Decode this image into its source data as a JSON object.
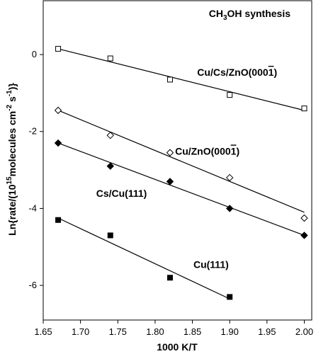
{
  "chart_data": {
    "type": "scatter",
    "title": "CH3OH synthesis",
    "title_parts": {
      "prefix": "CH",
      "sub1": "3",
      "suffix": "OH synthesis"
    },
    "xlabel": "1000 K/T",
    "ylabel": "Ln{rate/(10^15 molecules cm^-2 s^-1)}",
    "ylabel_parts": {
      "a": "Ln{rate/(10",
      "exp1": "15",
      "b": "molecules cm",
      "exp2": "-2",
      "c": " s",
      "exp3": "-1",
      "d": ")}"
    },
    "xlim": [
      1.65,
      2.01
    ],
    "ylim": [
      -6.9,
      1.4
    ],
    "xticks": [
      "1.65",
      "1.70",
      "1.75",
      "1.80",
      "1.85",
      "1.90",
      "1.95",
      "2.00"
    ],
    "xtick_values": [
      1.65,
      1.7,
      1.75,
      1.8,
      1.85,
      1.9,
      1.95,
      2.0
    ],
    "yticks": [
      "0",
      "-2",
      "-4",
      "-6"
    ],
    "ytick_values": [
      0,
      -2,
      -4,
      -6
    ],
    "grid": false,
    "series": [
      {
        "name": "Cu/Cs/ZnO(0001̅)",
        "name_text": "Cu/Cs/ZnO(000",
        "name_overbar": "1",
        "name_close": ")",
        "marker": "open-square",
        "x": [
          1.67,
          1.74,
          1.82,
          1.9,
          2.0
        ],
        "y": [
          0.15,
          -0.1,
          -0.65,
          -1.05,
          -1.4
        ],
        "fit": [
          [
            1.67,
            0.15
          ],
          [
            2.0,
            -1.45
          ]
        ],
        "label_at": [
          1.91,
          -0.55
        ]
      },
      {
        "name": "Cu/ZnO(0001̅)",
        "name_text": "Cu/ZnO(000",
        "name_overbar": "1",
        "name_close": ")",
        "marker": "open-diamond",
        "x": [
          1.67,
          1.74,
          1.82,
          1.9,
          2.0
        ],
        "y": [
          -1.45,
          -2.1,
          -2.55,
          -3.2,
          -4.25
        ],
        "fit": [
          [
            1.67,
            -1.45
          ],
          [
            2.0,
            -4.1
          ]
        ],
        "label_at": [
          1.87,
          -2.6
        ]
      },
      {
        "name": "Cs/Cu(111)",
        "marker": "filled-diamond",
        "x": [
          1.67,
          1.74,
          1.82,
          1.9,
          2.0
        ],
        "y": [
          -2.3,
          -2.9,
          -3.3,
          -4.0,
          -4.7
        ],
        "fit": [
          [
            1.67,
            -2.3
          ],
          [
            2.0,
            -4.7
          ]
        ],
        "label_at": [
          1.755,
          -3.7
        ]
      },
      {
        "name": "Cu(111)",
        "marker": "filled-square",
        "x": [
          1.67,
          1.74,
          1.82,
          1.9
        ],
        "y": [
          -4.3,
          -4.7,
          -5.8,
          -6.3
        ],
        "fit": [
          [
            1.67,
            -4.25
          ],
          [
            1.9,
            -6.35
          ]
        ],
        "label_at": [
          1.875,
          -5.55
        ]
      }
    ]
  }
}
